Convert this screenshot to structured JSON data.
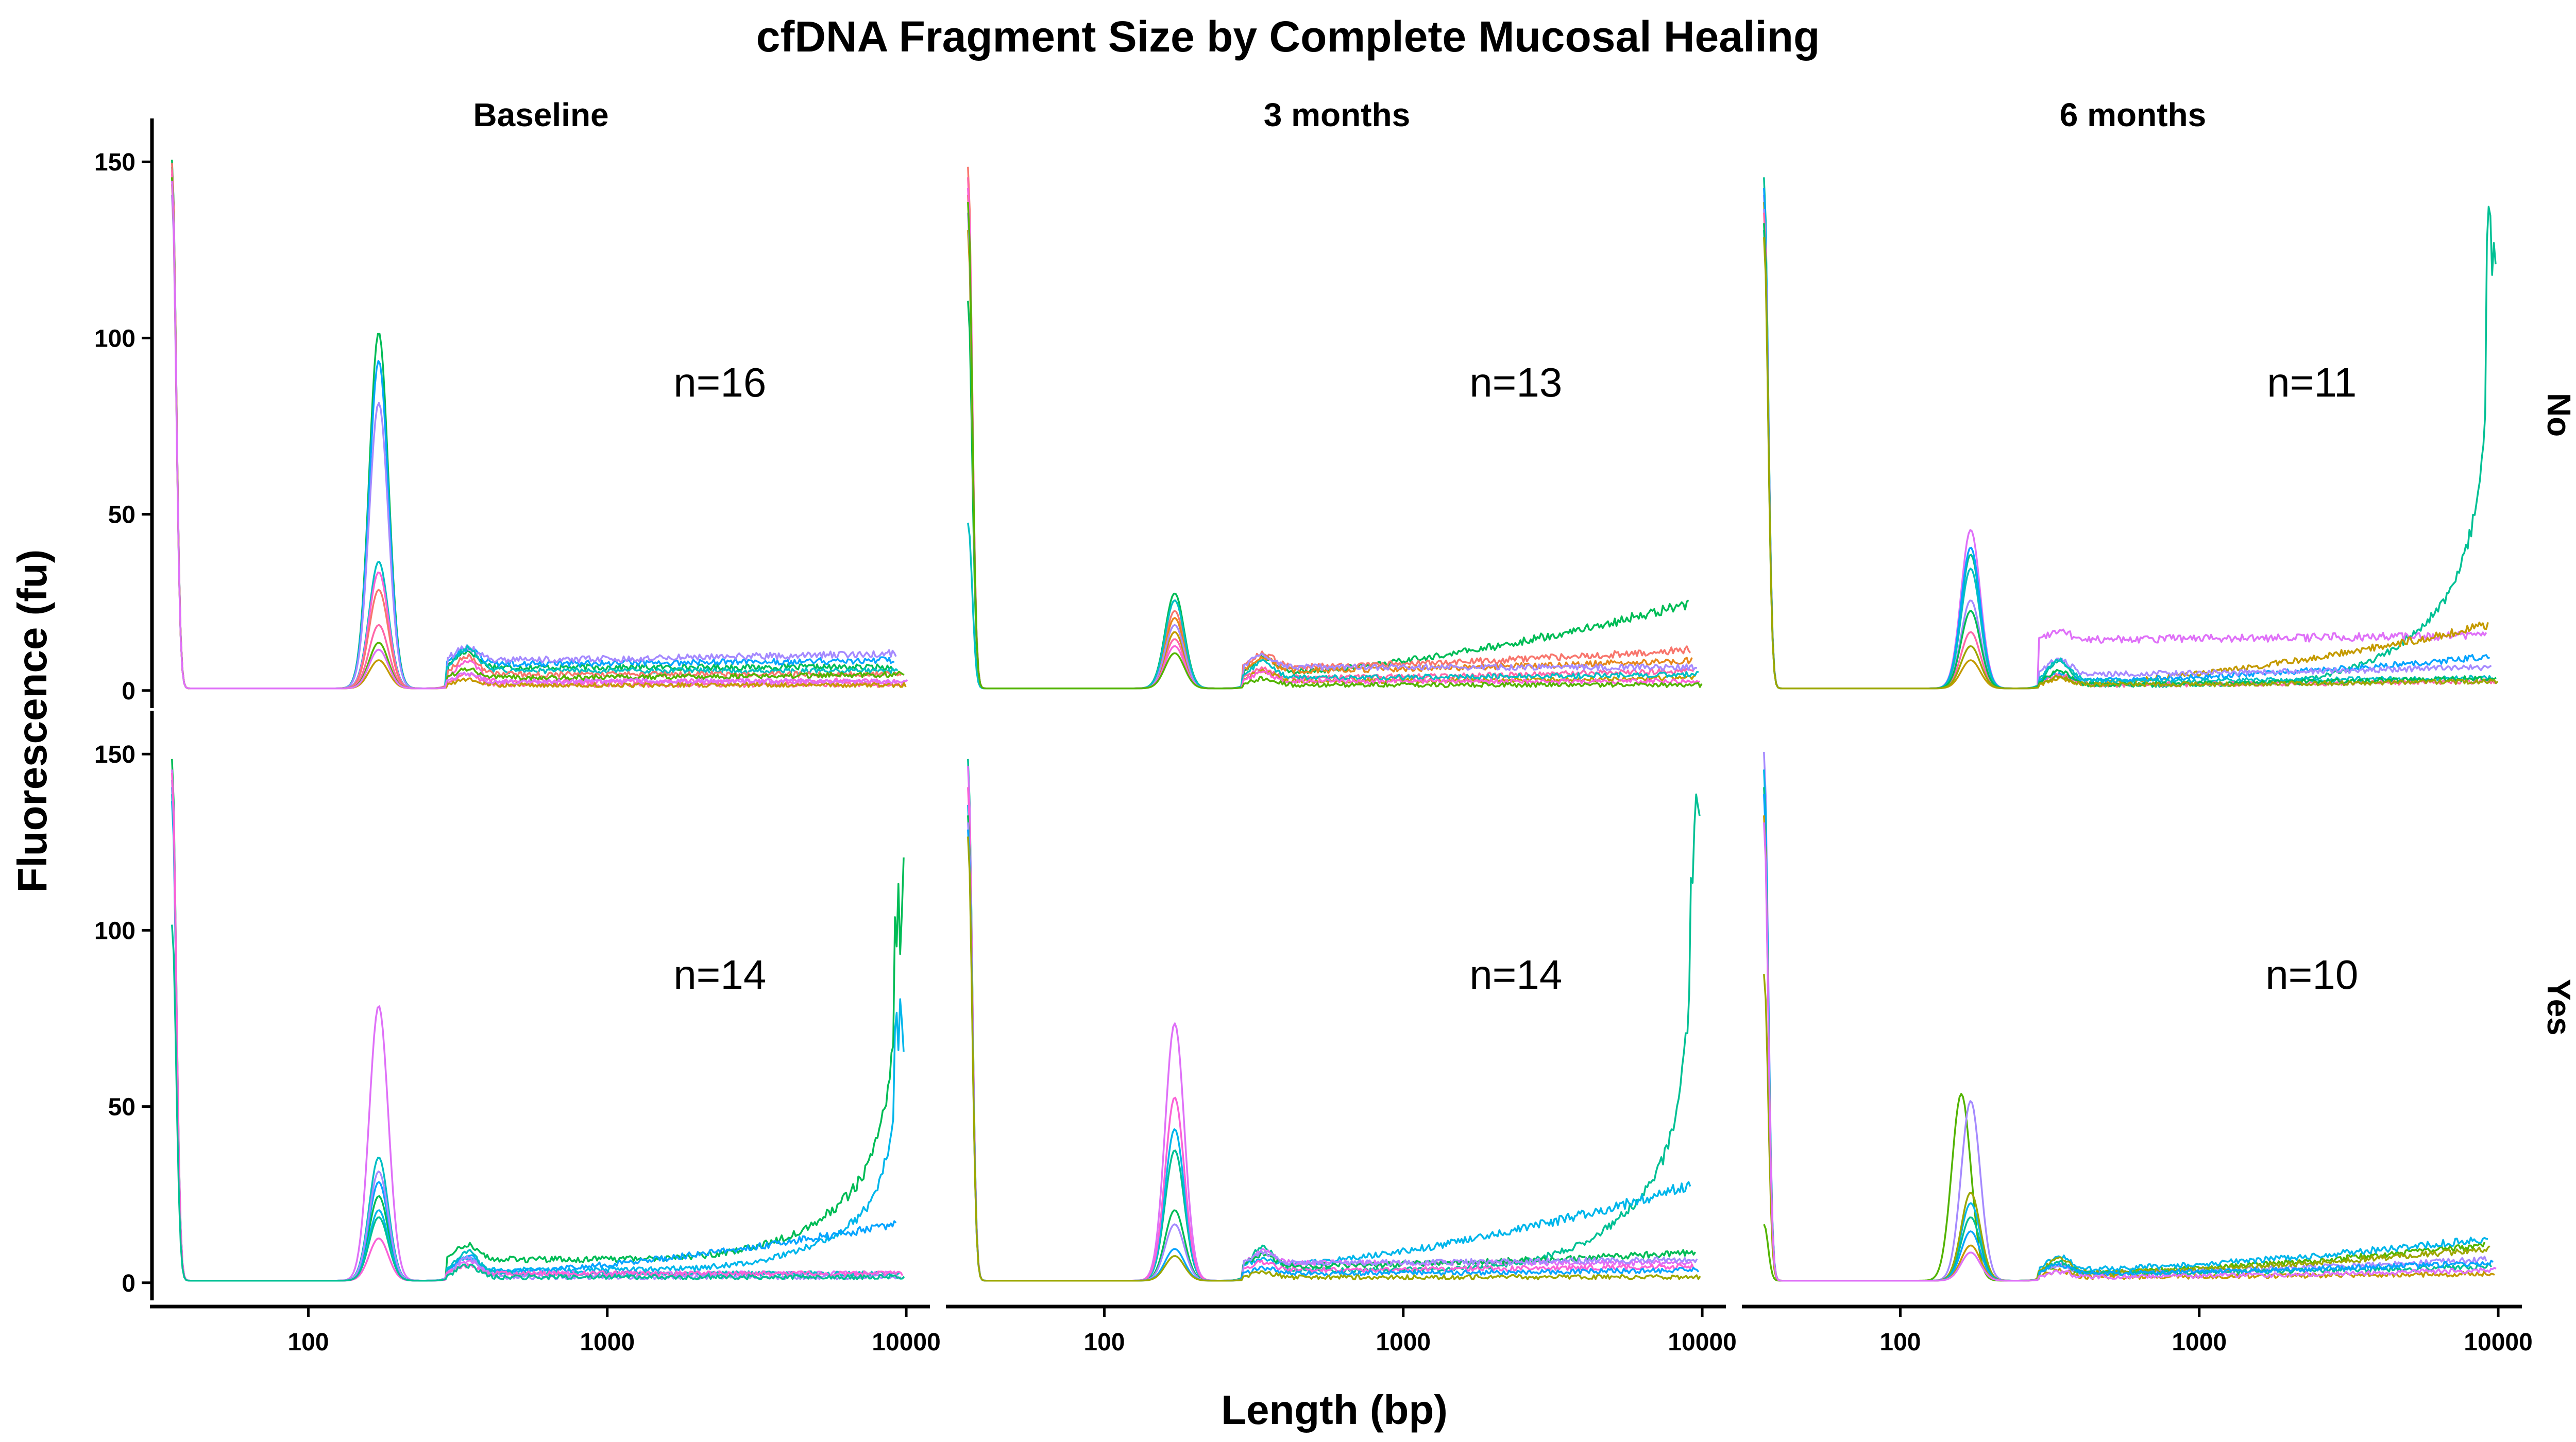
{
  "chart_data": {
    "type": "line",
    "title": "cfDNA Fragment Size by Complete Mucosal Healing",
    "xlabel": "Length (bp)",
    "ylabel": "Fluorescence (fu)",
    "x_scale": "log10",
    "xlim": [
      30,
      12000
    ],
    "ylim": [
      -5,
      155
    ],
    "x_ticks": [
      100,
      1000,
      10000
    ],
    "x_tick_labels": [
      "100",
      "1000",
      "10000"
    ],
    "y_ticks": [
      0,
      50,
      100,
      150
    ],
    "y_tick_labels": [
      "0",
      "50",
      "100",
      "150"
    ],
    "grid": false,
    "legend": "none",
    "columns": [
      "Baseline",
      "3 months",
      "6 months"
    ],
    "rows": [
      "No",
      "Yes"
    ],
    "palette": [
      "#F8766D",
      "#E7861B",
      "#C49A00",
      "#9CA700",
      "#53B400",
      "#00BC56",
      "#00C094",
      "#00BFC4",
      "#00B6EB",
      "#06A4FF",
      "#A58AFF",
      "#DF70F8",
      "#FB61D7",
      "#FF66A8"
    ],
    "panels": [
      {
        "column": "Baseline",
        "row": "No",
        "n_label": "n=16",
        "series": [
          {
            "color": "#00BC56",
            "marker": 150,
            "peak": 101,
            "plateau": 6,
            "late": 6
          },
          {
            "color": "#06A4FF",
            "marker": 145,
            "peak": 93,
            "plateau": 7,
            "late": 8
          },
          {
            "color": "#A58AFF",
            "marker": 140,
            "peak": 81,
            "plateau": 8,
            "late": 10
          },
          {
            "color": "#00BFC4",
            "marker": 148,
            "peak": 36,
            "plateau": 5,
            "late": 5
          },
          {
            "color": "#FB61D7",
            "marker": 146,
            "peak": 33,
            "plateau": 2,
            "late": 2
          },
          {
            "color": "#F8766D",
            "marker": 149,
            "peak": 28,
            "plateau": 4,
            "late": 4
          },
          {
            "color": "#FF66A8",
            "marker": 147,
            "peak": 18,
            "plateau": 1,
            "late": 1
          },
          {
            "color": "#53B400",
            "marker": 145,
            "peak": 13,
            "plateau": 3,
            "late": 4
          },
          {
            "color": "#C49A00",
            "marker": 143,
            "peak": 8,
            "plateau": 1,
            "late": 1
          },
          {
            "color": "#DF70F8",
            "marker": 144,
            "peak": 11,
            "plateau": 2,
            "late": 2
          }
        ]
      },
      {
        "column": "3 months",
        "row": "No",
        "n_label": "n=13",
        "series": [
          {
            "color": "#00BC56",
            "marker": 110,
            "peak": 27,
            "plateau": 4,
            "late": 24
          },
          {
            "color": "#F8766D",
            "marker": 148,
            "peak": 22,
            "plateau": 6,
            "late": 11
          },
          {
            "color": "#E7861B",
            "marker": 140,
            "peak": 20,
            "plateau": 5,
            "late": 8
          },
          {
            "color": "#FF66A8",
            "marker": 145,
            "peak": 14,
            "plateau": 3,
            "late": 5
          },
          {
            "color": "#C49A00",
            "marker": 130,
            "peak": 16,
            "plateau": 2,
            "late": 3
          },
          {
            "color": "#A58AFF",
            "marker": 135,
            "peak": 18,
            "plateau": 6,
            "late": 6
          },
          {
            "color": "#00BFC4",
            "marker": 47,
            "peak": 25,
            "plateau": 3,
            "late": 4
          },
          {
            "color": "#FB61D7",
            "marker": 142,
            "peak": 12,
            "plateau": 2,
            "late": 2
          },
          {
            "color": "#53B400",
            "marker": 138,
            "peak": 10,
            "plateau": 1,
            "late": 1
          }
        ]
      },
      {
        "column": "6 months",
        "row": "No",
        "n_label": "n=11",
        "series": [
          {
            "color": "#00C094",
            "marker": 145,
            "peak": 38,
            "plateau": 1,
            "late": 138
          },
          {
            "color": "#DF70F8",
            "marker": 140,
            "peak": 45,
            "plateau": 14,
            "late": 15
          },
          {
            "color": "#C49A00",
            "marker": 138,
            "peak": 8,
            "plateau": 1,
            "late": 18
          },
          {
            "color": "#06A4FF",
            "marker": 142,
            "peak": 40,
            "plateau": 2,
            "late": 9
          },
          {
            "color": "#A58AFF",
            "marker": 136,
            "peak": 25,
            "plateau": 4,
            "late": 6
          },
          {
            "color": "#00BFC4",
            "marker": 130,
            "peak": 34,
            "plateau": 2,
            "late": 3
          },
          {
            "color": "#FF66A8",
            "marker": 135,
            "peak": 16,
            "plateau": 1,
            "late": 2
          },
          {
            "color": "#00BC56",
            "marker": 132,
            "peak": 22,
            "plateau": 1,
            "late": 3
          },
          {
            "color": "#9CA700",
            "marker": 128,
            "peak": 12,
            "plateau": 1,
            "late": 2
          }
        ]
      },
      {
        "column": "Baseline",
        "row": "Yes",
        "n_label": "n=14",
        "series": [
          {
            "color": "#00BC56",
            "marker": 148,
            "peak": 24,
            "plateau": 6,
            "late": 118
          },
          {
            "color": "#00B6EB",
            "marker": 140,
            "peak": 20,
            "plateau": 3,
            "late": 80
          },
          {
            "color": "#06A4FF",
            "marker": 136,
            "peak": 28,
            "plateau": 2,
            "late": 16
          },
          {
            "color": "#DF70F8",
            "marker": 145,
            "peak": 78,
            "plateau": 2,
            "late": 2
          },
          {
            "color": "#00BFC4",
            "marker": 138,
            "peak": 35,
            "plateau": 2,
            "late": 2
          },
          {
            "color": "#A58AFF",
            "marker": 142,
            "peak": 31,
            "plateau": 1,
            "late": 1
          },
          {
            "color": "#FB61D7",
            "marker": 144,
            "peak": 12,
            "plateau": 2,
            "late": 2
          },
          {
            "color": "#00C094",
            "marker": 101,
            "peak": 18,
            "plateau": 1,
            "late": 1
          }
        ]
      },
      {
        "column": "3 months",
        "row": "Yes",
        "n_label": "n=14",
        "series": [
          {
            "color": "#00C094",
            "marker": 148,
            "peak": 37,
            "plateau": 3,
            "late": 138
          },
          {
            "color": "#00B6EB",
            "marker": 135,
            "peak": 43,
            "plateau": 4,
            "late": 27
          },
          {
            "color": "#DF70F8",
            "marker": 146,
            "peak": 73,
            "plateau": 5,
            "late": 5
          },
          {
            "color": "#FB61D7",
            "marker": 140,
            "peak": 52,
            "plateau": 3,
            "late": 4
          },
          {
            "color": "#00BC56",
            "marker": 132,
            "peak": 20,
            "plateau": 4,
            "late": 8
          },
          {
            "color": "#A58AFF",
            "marker": 130,
            "peak": 16,
            "plateau": 5,
            "late": 6
          },
          {
            "color": "#06A4FF",
            "marker": 128,
            "peak": 9,
            "plateau": 2,
            "late": 3
          },
          {
            "color": "#9CA700",
            "marker": 126,
            "peak": 7,
            "plateau": 1,
            "late": 1
          }
        ]
      },
      {
        "column": "6 months",
        "row": "Yes",
        "n_label": "n=10",
        "series": [
          {
            "color": "#53B400",
            "marker": 16,
            "peak": 53,
            "plateau": 2,
            "late": 10
          },
          {
            "color": "#A58AFF",
            "marker": 150,
            "peak": 51,
            "plateau": 2,
            "late": 6
          },
          {
            "color": "#00B6EB",
            "marker": 145,
            "peak": 22,
            "plateau": 3,
            "late": 12
          },
          {
            "color": "#9CA700",
            "marker": 87,
            "peak": 25,
            "plateau": 2,
            "late": 9
          },
          {
            "color": "#00C094",
            "marker": 140,
            "peak": 18,
            "plateau": 2,
            "late": 4
          },
          {
            "color": "#06A4FF",
            "marker": 138,
            "peak": 14,
            "plateau": 2,
            "late": 5
          },
          {
            "color": "#C49A00",
            "marker": 132,
            "peak": 10,
            "plateau": 1,
            "late": 2
          },
          {
            "color": "#DF70F8",
            "marker": 130,
            "peak": 8,
            "plateau": 1,
            "late": 3
          }
        ]
      }
    ]
  }
}
